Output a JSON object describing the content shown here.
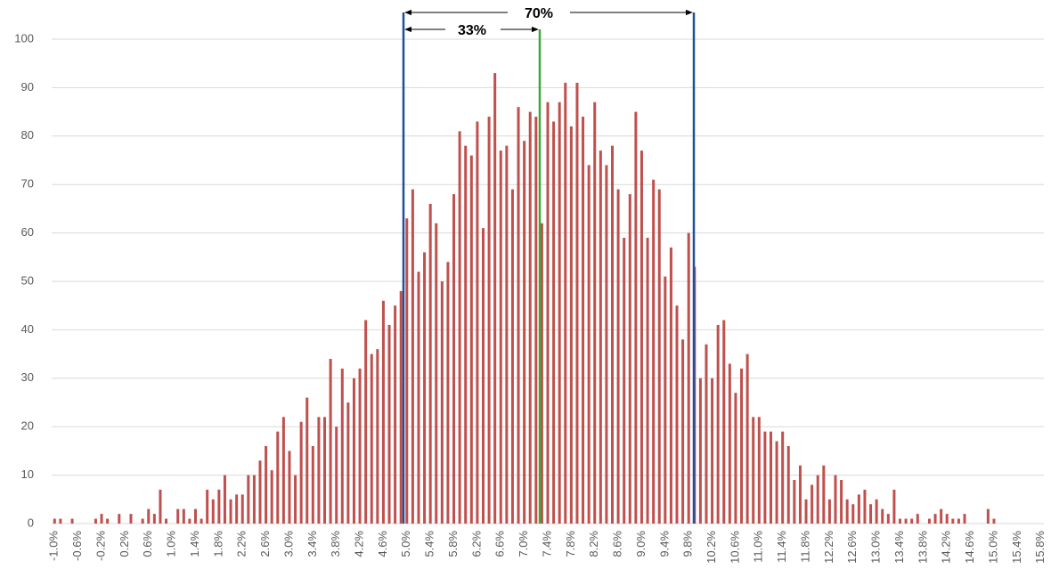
{
  "chart_data": {
    "type": "bar",
    "color": "#c0504d",
    "categories": [
      "-1.0%",
      null,
      null,
      null,
      "-0.6%",
      null,
      null,
      null,
      "-0.2%",
      null,
      null,
      null,
      "0.2%",
      null,
      null,
      null,
      "0.6%",
      null,
      null,
      null,
      "1.0%",
      null,
      null,
      null,
      "1.4%",
      null,
      null,
      null,
      "1.8%",
      null,
      null,
      null,
      "2.2%",
      null,
      null,
      null,
      "2.6%",
      null,
      null,
      null,
      "3.0%",
      null,
      null,
      null,
      "3.4%",
      null,
      null,
      null,
      "3.8%",
      null,
      null,
      null,
      "4.2%",
      null,
      null,
      null,
      "4.6%",
      null,
      null,
      null,
      "5.0%",
      null,
      null,
      null,
      "5.4%",
      null,
      null,
      null,
      "5.8%",
      null,
      null,
      null,
      "6.2%",
      null,
      null,
      null,
      "6.6%",
      null,
      null,
      null,
      "7.0%",
      null,
      null,
      null,
      "7.4%",
      null,
      null,
      null,
      "7.8%",
      null,
      null,
      null,
      "8.2%",
      null,
      null,
      null,
      "8.6%",
      null,
      null,
      null,
      "9.0%",
      null,
      null,
      null,
      "9.4%",
      null,
      null,
      null,
      "9.8%",
      null,
      null,
      null,
      "10.2%",
      null,
      null,
      null,
      "10.6%",
      null,
      null,
      null,
      "11.0%",
      null,
      null,
      null,
      "11.4%",
      null,
      null,
      null,
      "11.8%",
      null,
      null,
      null,
      "12.2%",
      null,
      null,
      null,
      "12.6%",
      null,
      null,
      null,
      "13.0%",
      null,
      null,
      null,
      "13.4%",
      null,
      null,
      null,
      "13.8%",
      null,
      null,
      null,
      "14.2%",
      null,
      null,
      null,
      "14.6%",
      null,
      null,
      null,
      "15.0%",
      null,
      null,
      null,
      "15.4%",
      null,
      null,
      null,
      "15.8%"
    ],
    "values": [
      1,
      1,
      0,
      1,
      0,
      0,
      0,
      1,
      2,
      1,
      0,
      2,
      0,
      2,
      0,
      1,
      3,
      2,
      7,
      1,
      0,
      3,
      3,
      1,
      3,
      1,
      7,
      5,
      7,
      10,
      5,
      6,
      6,
      10,
      10,
      13,
      16,
      11,
      19,
      22,
      15,
      10,
      21,
      26,
      16,
      22,
      22,
      34,
      20,
      32,
      25,
      30,
      32,
      42,
      35,
      36,
      46,
      41,
      45,
      48,
      63,
      69,
      52,
      56,
      66,
      62,
      50,
      54,
      68,
      81,
      78,
      76,
      83,
      61,
      84,
      93,
      77,
      78,
      69,
      86,
      79,
      85,
      84,
      62,
      87,
      83,
      87,
      91,
      82,
      91,
      84,
      74,
      87,
      77,
      74,
      78,
      69,
      59,
      68,
      85,
      77,
      59,
      71,
      69,
      51,
      57,
      45,
      38,
      60,
      53,
      30,
      37,
      30,
      41,
      42,
      33,
      27,
      32,
      35,
      22,
      22,
      19,
      19,
      17,
      19,
      16,
      9,
      12,
      5,
      8,
      10,
      12,
      5,
      10,
      9,
      5,
      4,
      6,
      7,
      4,
      5,
      3,
      2,
      7,
      1,
      1,
      1,
      2,
      0,
      1,
      2,
      3,
      2,
      1,
      1,
      2,
      0,
      0,
      0,
      3,
      1,
      0,
      0,
      0,
      0,
      0,
      0,
      0,
      0
    ],
    "ylim": [
      0,
      100
    ],
    "yticks": [
      0,
      10,
      20,
      30,
      40,
      50,
      60,
      70,
      80,
      90,
      100
    ],
    "grid": true,
    "annotations": [
      "70%",
      "33%"
    ]
  }
}
